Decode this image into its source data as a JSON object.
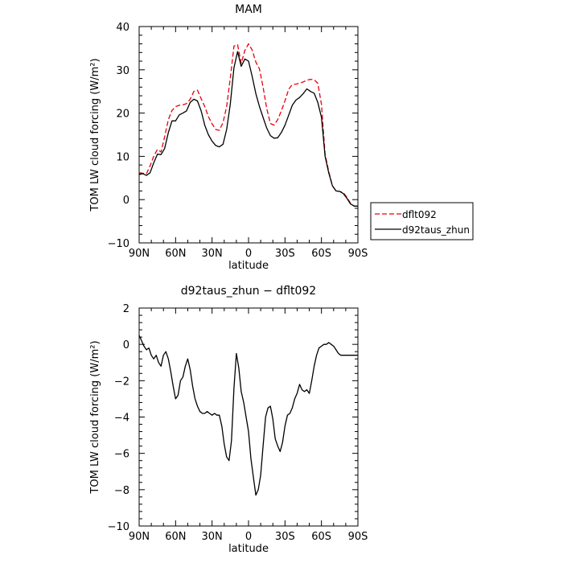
{
  "chart_data": [
    {
      "type": "line",
      "title": "MAM",
      "xlabel": "latitude",
      "ylabel": "TOM LW cloud forcing (W/m²)",
      "xlim": [
        90,
        -90
      ],
      "ylim": [
        -10,
        40
      ],
      "xticks": [
        90,
        60,
        30,
        0,
        -30,
        -60,
        -90
      ],
      "xtick_labels": [
        "90N",
        "60N",
        "30N",
        "0",
        "30S",
        "60S",
        "90S"
      ],
      "yticks": [
        -10,
        0,
        10,
        20,
        30,
        40
      ],
      "ytick_labels": [
        "−10",
        "0",
        "10",
        "20",
        "30",
        "40"
      ],
      "legend": "right",
      "series": [
        {
          "name": "dflt092",
          "color": "#e8000b",
          "dash": "dashed",
          "x": [
            90,
            87,
            84,
            81,
            78,
            75,
            72,
            69,
            66,
            63,
            60,
            57,
            54,
            51,
            48,
            45,
            42,
            39,
            36,
            33,
            30,
            27,
            24,
            21,
            18,
            15,
            12,
            9,
            6,
            3,
            0,
            -3,
            -6,
            -9,
            -12,
            -15,
            -18,
            -21,
            -24,
            -27,
            -30,
            -33,
            -36,
            -39,
            -42,
            -45,
            -48,
            -51,
            -54,
            -57,
            -60,
            -63,
            -66,
            -69,
            -72,
            -75,
            -78,
            -81,
            -84,
            -87,
            -90
          ],
          "y": [
            6.2,
            6.1,
            6,
            7.8,
            10,
            11.6,
            11,
            14.5,
            18.5,
            20.6,
            21.5,
            21.8,
            21.9,
            22.2,
            23.2,
            25,
            25.3,
            23.3,
            21.5,
            19.2,
            17.5,
            16.2,
            16,
            17.8,
            21.5,
            28,
            35.5,
            35.8,
            31.5,
            34.5,
            36,
            34.6,
            31.8,
            30.2,
            26,
            21,
            17.6,
            17.2,
            18.5,
            20.5,
            22.8,
            25.5,
            26.6,
            26.7,
            26.9,
            27.2,
            27.6,
            27.8,
            27.7,
            26.9,
            22,
            10.5,
            6.5,
            3.2,
            2,
            1.9,
            1.6,
            0.5,
            -0.9,
            -1.5,
            -1.5
          ]
        },
        {
          "name": "d92taus_zhun",
          "color": "#000000",
          "dash": "solid",
          "x": [
            90,
            87,
            84,
            81,
            78,
            75,
            72,
            69,
            66,
            63,
            60,
            57,
            54,
            51,
            48,
            45,
            42,
            39,
            36,
            33,
            30,
            27,
            24,
            21,
            18,
            15,
            12,
            9,
            6,
            3,
            0,
            -3,
            -6,
            -9,
            -12,
            -15,
            -18,
            -21,
            -24,
            -27,
            -30,
            -33,
            -36,
            -39,
            -42,
            -45,
            -48,
            -51,
            -54,
            -57,
            -60,
            -63,
            -66,
            -69,
            -72,
            -75,
            -78,
            -81,
            -84,
            -87,
            -90
          ],
          "y": [
            5.8,
            6,
            5.6,
            6.2,
            8.5,
            10.5,
            10.4,
            11.8,
            15.5,
            18.2,
            18.2,
            19.6,
            20,
            20.5,
            22.5,
            23.2,
            22.8,
            20.5,
            17.2,
            15,
            13.5,
            12.5,
            12.2,
            12.8,
            16.2,
            22,
            30.5,
            34.2,
            30.8,
            32.5,
            32,
            28.5,
            24.5,
            21.5,
            19,
            16.5,
            14.8,
            14.2,
            14.3,
            15.5,
            17.2,
            19.5,
            21.8,
            23,
            23.6,
            24.5,
            25.6,
            25,
            24.6,
            22.5,
            19,
            10,
            6.2,
            3.2,
            2,
            1.9,
            1.4,
            0.3,
            -1,
            -1.5,
            -1.5
          ]
        }
      ]
    },
    {
      "type": "line",
      "title": "d92taus_zhun − dflt092",
      "xlabel": "latitude",
      "ylabel": "TOM LW cloud forcing (W/m²)",
      "xlim": [
        90,
        -90
      ],
      "ylim": [
        -10,
        2
      ],
      "xticks": [
        90,
        60,
        30,
        0,
        -30,
        -60,
        -90
      ],
      "xtick_labels": [
        "90N",
        "60N",
        "30N",
        "0",
        "30S",
        "60S",
        "90S"
      ],
      "yticks": [
        -10,
        -8,
        -6,
        -4,
        -2,
        0,
        2
      ],
      "ytick_labels": [
        "−10",
        "−8",
        "−6",
        "−4",
        "−2",
        "0",
        "2"
      ],
      "series": [
        {
          "color": "#000000",
          "dash": "solid",
          "x": [
            90,
            88,
            86,
            84,
            82,
            80,
            78,
            76,
            74,
            72,
            70,
            68,
            66,
            64,
            62,
            60,
            58,
            56,
            54,
            52,
            50,
            48,
            46,
            44,
            42,
            40,
            38,
            36,
            34,
            32,
            30,
            28,
            26,
            24,
            22,
            20,
            18,
            16,
            14,
            12,
            10,
            8,
            6,
            4,
            2,
            0,
            -2,
            -4,
            -6,
            -8,
            -10,
            -12,
            -14,
            -16,
            -18,
            -20,
            -22,
            -24,
            -26,
            -28,
            -30,
            -32,
            -34,
            -36,
            -38,
            -40,
            -42,
            -44,
            -46,
            -48,
            -50,
            -52,
            -54,
            -56,
            -58,
            -60,
            -62,
            -64,
            -66,
            -68,
            -70,
            -72,
            -74,
            -76,
            -78,
            -80,
            -82,
            -84,
            -86,
            -88,
            -90
          ],
          "y": [
            0.5,
            0.2,
            -0.1,
            -0.3,
            -0.2,
            -0.6,
            -0.8,
            -0.6,
            -1,
            -1.2,
            -0.6,
            -0.4,
            -0.8,
            -1.5,
            -2.3,
            -3,
            -2.8,
            -2,
            -1.8,
            -1.2,
            -0.8,
            -1.4,
            -2.3,
            -3,
            -3.4,
            -3.7,
            -3.8,
            -3.8,
            -3.7,
            -3.8,
            -3.9,
            -3.8,
            -3.9,
            -3.9,
            -4.5,
            -5.5,
            -6.2,
            -6.4,
            -5.3,
            -2.4,
            -0.5,
            -1.3,
            -2.6,
            -3.2,
            -4,
            -4.8,
            -6.3,
            -7.3,
            -8.3,
            -8.0,
            -7.2,
            -5.6,
            -4.0,
            -3.5,
            -3.4,
            -4.1,
            -5.2,
            -5.6,
            -5.9,
            -5.4,
            -4.5,
            -3.9,
            -3.8,
            -3.5,
            -3.0,
            -2.7,
            -2.2,
            -2.5,
            -2.6,
            -2.5,
            -2.7,
            -2.0,
            -1.2,
            -0.6,
            -0.2,
            -0.1,
            0,
            0,
            0.1,
            0,
            -0.1,
            -0.3,
            -0.5,
            -0.6,
            -0.6,
            -0.6,
            -0.6,
            -0.6,
            -0.6,
            -0.6,
            -0.6
          ]
        }
      ]
    }
  ]
}
